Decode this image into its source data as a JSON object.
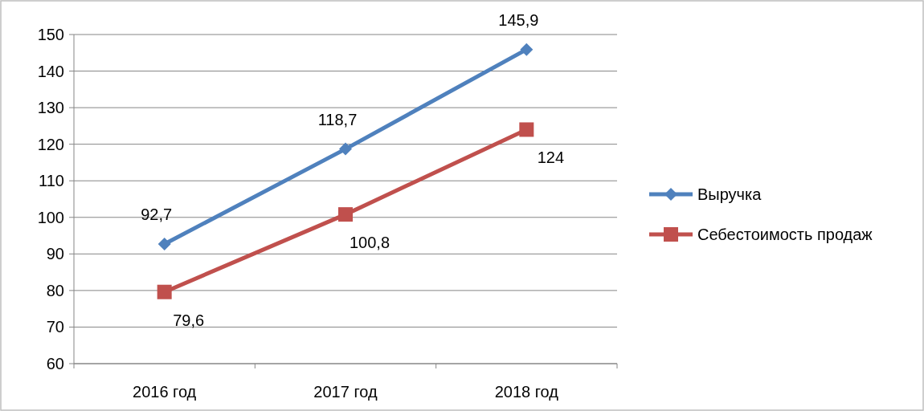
{
  "chart_data": {
    "type": "line",
    "categories": [
      "2016 год",
      "2017 год",
      "2018 год"
    ],
    "series": [
      {
        "name": "Выручка",
        "color": "#4f81bd",
        "marker": "diamond",
        "values": [
          92.7,
          118.7,
          145.9
        ],
        "value_labels": [
          "92,7",
          "118,7",
          "145,9"
        ]
      },
      {
        "name": "Себестоимость продаж",
        "color": "#c0504d",
        "marker": "square",
        "values": [
          79.6,
          100.8,
          124
        ],
        "value_labels": [
          "79,6",
          "100,8",
          "124"
        ]
      }
    ],
    "ylim": [
      60,
      150
    ],
    "yticks": [
      60,
      70,
      80,
      90,
      100,
      110,
      120,
      130,
      140,
      150
    ],
    "grid": "y",
    "legend": "right"
  }
}
